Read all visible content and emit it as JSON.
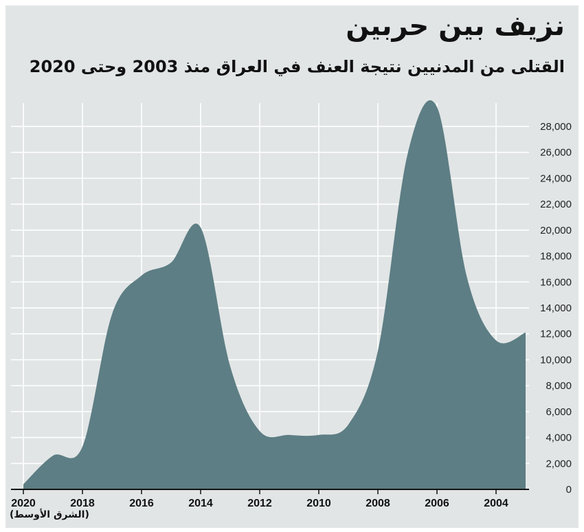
{
  "chart_data": {
    "type": "area",
    "title": "نزيف بين حربين",
    "subtitle": "القتلى من المدنيين نتيجة العنف في العراق منذ 2003 وحتى 2020",
    "source": "(الشرق الأوسط)",
    "x_direction": "right-to-left",
    "x": [
      2003,
      2004,
      2005,
      2006,
      2007,
      2008,
      2009,
      2010,
      2011,
      2012,
      2013,
      2014,
      2015,
      2016,
      2017,
      2018,
      2019,
      2020
    ],
    "values": [
      12100,
      11500,
      16500,
      29500,
      25800,
      10700,
      5000,
      4200,
      4200,
      4500,
      9500,
      20200,
      17500,
      16500,
      13500,
      3300,
      2600,
      400
    ],
    "xticks": [
      2020,
      2018,
      2016,
      2014,
      2012,
      2010,
      2008,
      2006,
      2004
    ],
    "xtick_labels": [
      "2020",
      "2018",
      "2016",
      "2014",
      "2012",
      "2010",
      "2008",
      "2006",
      "2004"
    ],
    "ylim": [
      0,
      29800
    ],
    "yticks": [
      0,
      2000,
      4000,
      6000,
      8000,
      10000,
      12000,
      14000,
      16000,
      18000,
      20000,
      22000,
      24000,
      26000,
      28000
    ],
    "ytick_labels": [
      "0",
      "2,000",
      "4,000",
      "6,000",
      "8,000",
      "10,000",
      "12,000",
      "14,000",
      "16,000",
      "18,000",
      "20,000",
      "22,000",
      "24,000",
      "26,000",
      "28,000"
    ],
    "y_axis_side": "right",
    "grid": true,
    "xlabel": "",
    "ylabel": "",
    "colors": {
      "area": "#5d7e84",
      "grid": "#ffffff",
      "background": "#e1e5e6",
      "axis": "#111111"
    }
  }
}
